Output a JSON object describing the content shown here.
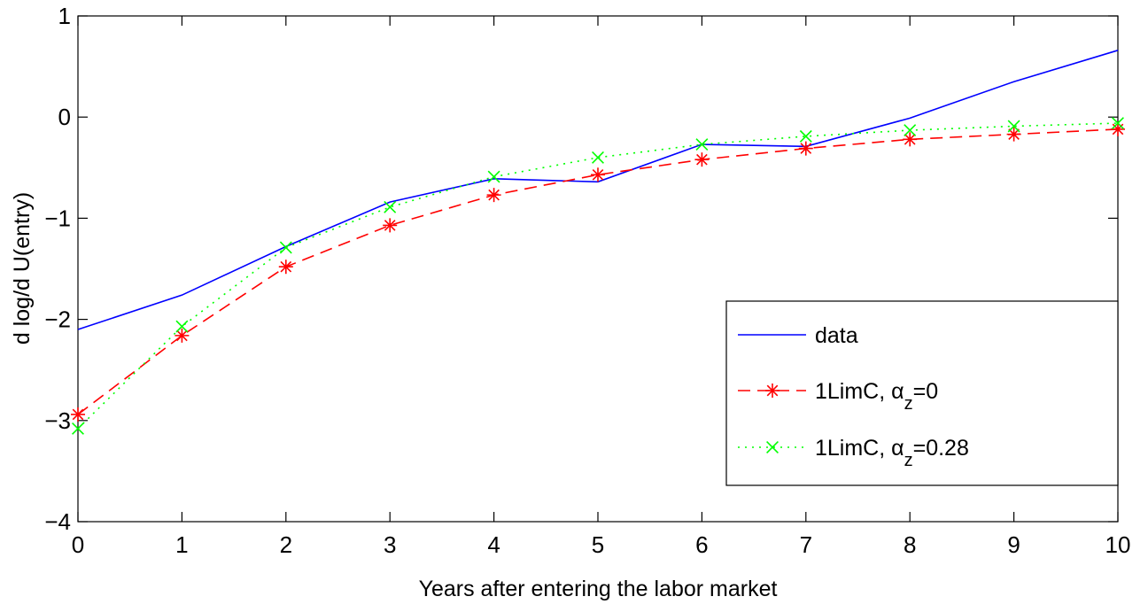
{
  "chart_data": {
    "type": "line",
    "xlabel": "Years after entering the labor market",
    "ylabel": "d log/d U(entry)",
    "xlim": [
      0,
      10
    ],
    "ylim": [
      -4,
      1
    ],
    "x_ticks": [
      0,
      1,
      2,
      3,
      4,
      5,
      6,
      7,
      8,
      9,
      10
    ],
    "y_ticks": [
      -4,
      -3,
      -2,
      -1,
      0,
      1
    ],
    "x_tick_labels": [
      "0",
      "1",
      "2",
      "3",
      "4",
      "5",
      "6",
      "7",
      "8",
      "9",
      "10"
    ],
    "y_tick_labels": [
      "−4",
      "−3",
      "−2",
      "−1",
      "0",
      "1"
    ],
    "grid": false,
    "legend_position": "lower-right",
    "x": [
      0,
      1,
      2,
      3,
      4,
      5,
      6,
      7,
      8,
      9,
      10
    ],
    "series": [
      {
        "name": "data",
        "legend_prefix": "1LimC,",
        "color": "#0000ff",
        "line": "solid",
        "marker": "none",
        "values": [
          -2.1,
          -1.76,
          -1.28,
          -0.84,
          -0.61,
          -0.64,
          -0.27,
          -0.29,
          -0.01,
          0.35,
          0.66
        ]
      },
      {
        "name": "1LimC, αz=0",
        "legend_prefix": "1LimC, α",
        "legend_sub": "z",
        "legend_suffix": "=0",
        "color": "#ff0000",
        "line": "dashed",
        "marker": "star",
        "values": [
          -2.94,
          -2.16,
          -1.48,
          -1.07,
          -0.77,
          -0.57,
          -0.42,
          -0.31,
          -0.22,
          -0.17,
          -0.12
        ]
      },
      {
        "name": "1LimC, αz=0.28",
        "legend_prefix": "1LimC, α",
        "legend_sub": "z",
        "legend_suffix": "=0.28",
        "color": "#00ff00",
        "line": "dotted",
        "marker": "x",
        "values": [
          -3.08,
          -2.07,
          -1.29,
          -0.89,
          -0.59,
          -0.4,
          -0.27,
          -0.19,
          -0.13,
          -0.09,
          -0.06
        ]
      }
    ]
  }
}
